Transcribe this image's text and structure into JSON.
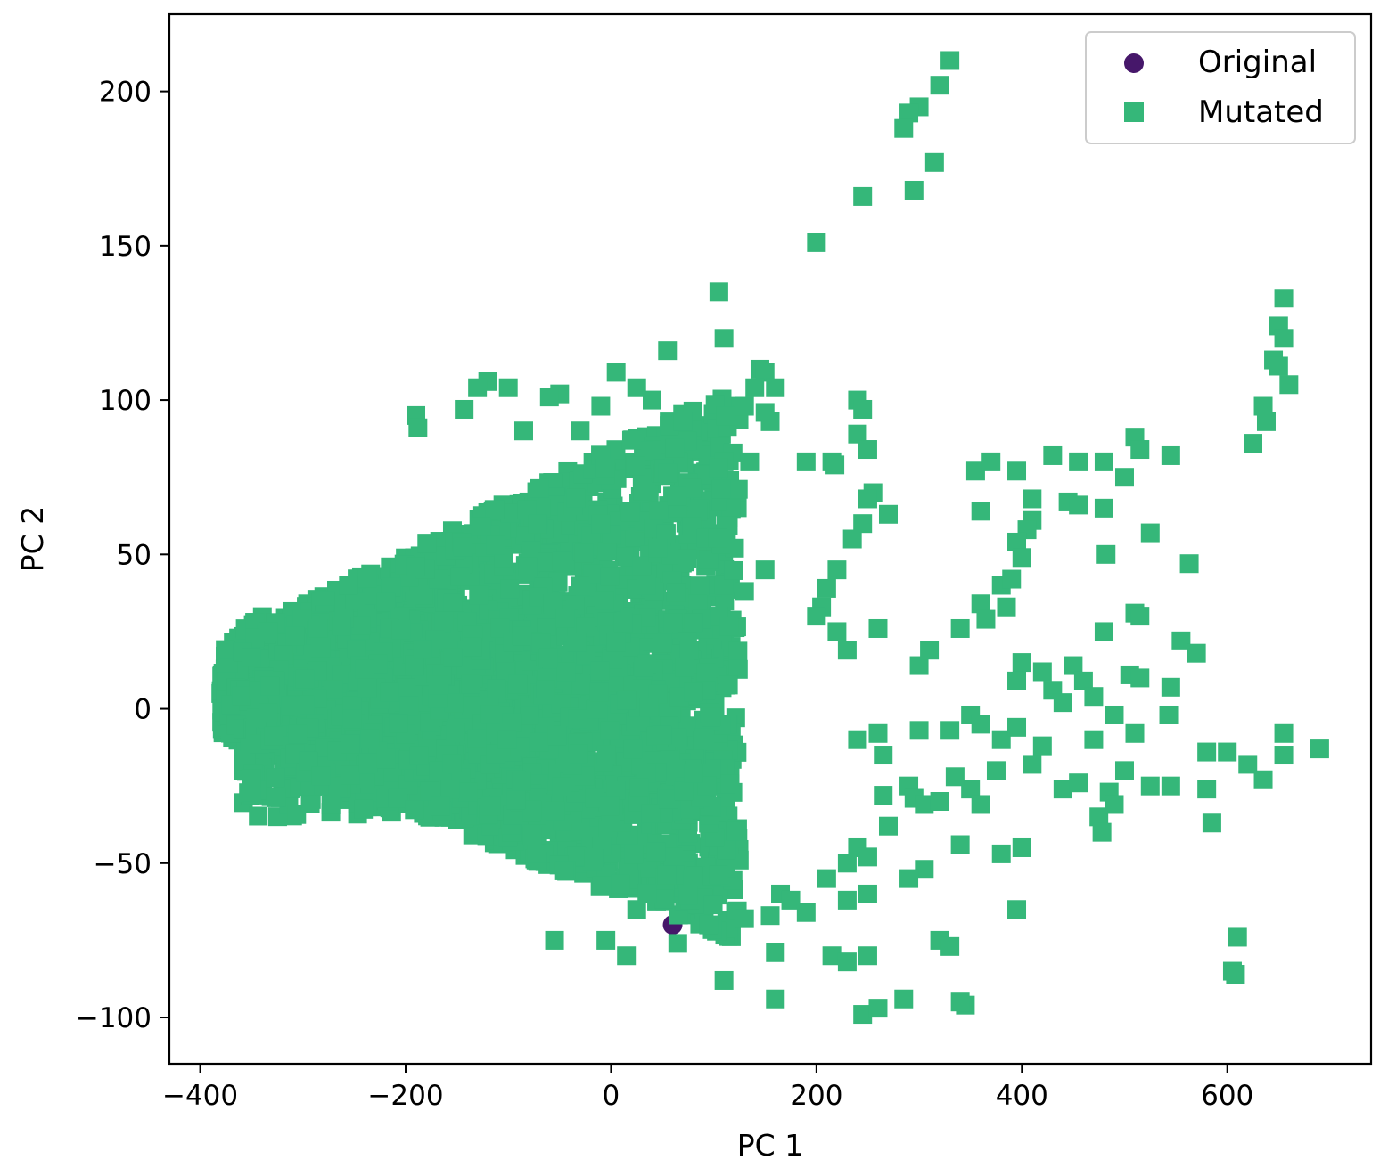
{
  "chart_data": {
    "type": "scatter",
    "title": "",
    "xlabel": "PC 1",
    "ylabel": "PC 2",
    "xlim": [
      -430,
      740
    ],
    "ylim": [
      -115,
      225
    ],
    "xticks": [
      -400,
      -200,
      0,
      200,
      400,
      600
    ],
    "yticks": [
      -100,
      -50,
      0,
      50,
      100,
      150,
      200
    ],
    "xtick_labels": [
      "−400",
      "−200",
      "0",
      "200",
      "400",
      "600"
    ],
    "ytick_labels": [
      "−100",
      "−50",
      "0",
      "50",
      "100",
      "150",
      "200"
    ],
    "grid": false,
    "legend": {
      "position": "top-right",
      "entries": [
        "Original",
        "Mutated"
      ]
    },
    "series": [
      {
        "name": "Original",
        "marker": "circle",
        "color": "#46176a",
        "points": [
          [
            -75,
            65
          ],
          [
            -30,
            48
          ],
          [
            60,
            -70
          ]
        ]
      },
      {
        "name": "Mutated",
        "marker": "square",
        "color": "#35b779",
        "cluster": {
          "count": 2600,
          "x_range": [
            -380,
            125
          ],
          "y_range": [
            -75,
            105
          ],
          "center": [
            -150,
            -2
          ]
        },
        "points": [
          [
            330,
            210
          ],
          [
            320,
            202
          ],
          [
            300,
            195
          ],
          [
            290,
            193
          ],
          [
            285,
            188
          ],
          [
            315,
            177
          ],
          [
            295,
            168
          ],
          [
            245,
            166
          ],
          [
            200,
            151
          ],
          [
            105,
            135
          ],
          [
            110,
            120
          ],
          [
            655,
            133
          ],
          [
            650,
            124
          ],
          [
            655,
            120
          ],
          [
            645,
            113
          ],
          [
            650,
            111
          ],
          [
            660,
            105
          ],
          [
            635,
            98
          ],
          [
            638,
            93
          ],
          [
            625,
            86
          ],
          [
            -50,
            102
          ],
          [
            -60,
            101
          ],
          [
            -120,
            106
          ],
          [
            -130,
            104
          ],
          [
            -100,
            104
          ],
          [
            5,
            109
          ],
          [
            55,
            116
          ],
          [
            145,
            110
          ],
          [
            150,
            109
          ],
          [
            140,
            104
          ],
          [
            160,
            104
          ],
          [
            -190,
            95
          ],
          [
            -188,
            91
          ],
          [
            -143,
            97
          ],
          [
            -85,
            90
          ],
          [
            40,
            100
          ],
          [
            70,
            93
          ],
          [
            25,
            104
          ],
          [
            240,
            100
          ],
          [
            245,
            97
          ],
          [
            -10,
            98
          ],
          [
            -30,
            90
          ],
          [
            20,
            87
          ],
          [
            130,
            98
          ],
          [
            150,
            96
          ],
          [
            155,
            93
          ],
          [
            240,
            89
          ],
          [
            250,
            84
          ],
          [
            215,
            80
          ],
          [
            218,
            79
          ],
          [
            190,
            80
          ],
          [
            110,
            80
          ],
          [
            105,
            78
          ],
          [
            135,
            80
          ],
          [
            355,
            77
          ],
          [
            370,
            80
          ],
          [
            395,
            77
          ],
          [
            430,
            82
          ],
          [
            455,
            80
          ],
          [
            480,
            80
          ],
          [
            500,
            75
          ],
          [
            510,
            88
          ],
          [
            515,
            84
          ],
          [
            545,
            82
          ],
          [
            410,
            68
          ],
          [
            445,
            67
          ],
          [
            455,
            66
          ],
          [
            480,
            65
          ],
          [
            360,
            64
          ],
          [
            410,
            61
          ],
          [
            405,
            58
          ],
          [
            525,
            57
          ],
          [
            395,
            54
          ],
          [
            400,
            49
          ],
          [
            482,
            50
          ],
          [
            563,
            47
          ],
          [
            255,
            70
          ],
          [
            250,
            68
          ],
          [
            270,
            63
          ],
          [
            245,
            60
          ],
          [
            235,
            55
          ],
          [
            220,
            45
          ],
          [
            210,
            39
          ],
          [
            205,
            33
          ],
          [
            200,
            30
          ],
          [
            150,
            45
          ],
          [
            130,
            38
          ],
          [
            220,
            25
          ],
          [
            230,
            19
          ],
          [
            260,
            26
          ],
          [
            300,
            14
          ],
          [
            310,
            19
          ],
          [
            340,
            26
          ],
          [
            360,
            34
          ],
          [
            380,
            40
          ],
          [
            390,
            42
          ],
          [
            365,
            29
          ],
          [
            385,
            33
          ],
          [
            400,
            15
          ],
          [
            395,
            9
          ],
          [
            420,
            12
          ],
          [
            430,
            6
          ],
          [
            440,
            2
          ],
          [
            450,
            14
          ],
          [
            460,
            9
          ],
          [
            470,
            4
          ],
          [
            480,
            25
          ],
          [
            510,
            31
          ],
          [
            515,
            30
          ],
          [
            490,
            -2
          ],
          [
            505,
            11
          ],
          [
            515,
            10
          ],
          [
            545,
            7
          ],
          [
            543,
            -2
          ],
          [
            555,
            22
          ],
          [
            570,
            18
          ],
          [
            510,
            -8
          ],
          [
            500,
            -20
          ],
          [
            525,
            -25
          ],
          [
            545,
            -25
          ],
          [
            580,
            -14
          ],
          [
            600,
            -14
          ],
          [
            620,
            -18
          ],
          [
            635,
            -23
          ],
          [
            655,
            -15
          ],
          [
            655,
            -8
          ],
          [
            690,
            -13
          ],
          [
            580,
            -26
          ],
          [
            585,
            -37
          ],
          [
            240,
            -10
          ],
          [
            260,
            -8
          ],
          [
            265,
            -15
          ],
          [
            300,
            -7
          ],
          [
            330,
            -7
          ],
          [
            350,
            -2
          ],
          [
            360,
            -5
          ],
          [
            375,
            -20
          ],
          [
            380,
            -10
          ],
          [
            395,
            -6
          ],
          [
            410,
            -18
          ],
          [
            420,
            -12
          ],
          [
            440,
            -26
          ],
          [
            455,
            -24
          ],
          [
            470,
            -10
          ],
          [
            475,
            -35
          ],
          [
            478,
            -40
          ],
          [
            485,
            -27
          ],
          [
            490,
            -31
          ],
          [
            350,
            -26
          ],
          [
            360,
            -31
          ],
          [
            290,
            -25
          ],
          [
            295,
            -29
          ],
          [
            305,
            -31
          ],
          [
            320,
            -30
          ],
          [
            335,
            -22
          ],
          [
            265,
            -28
          ],
          [
            270,
            -38
          ],
          [
            240,
            -45
          ],
          [
            250,
            -48
          ],
          [
            230,
            -50
          ],
          [
            305,
            -52
          ],
          [
            340,
            -44
          ],
          [
            380,
            -47
          ],
          [
            395,
            -65
          ],
          [
            400,
            -45
          ],
          [
            210,
            -55
          ],
          [
            230,
            -62
          ],
          [
            250,
            -60
          ],
          [
            290,
            -55
          ],
          [
            165,
            -60
          ],
          [
            175,
            -62
          ],
          [
            190,
            -66
          ],
          [
            155,
            -67
          ],
          [
            130,
            -68
          ],
          [
            160,
            -79
          ],
          [
            215,
            -80
          ],
          [
            250,
            -80
          ],
          [
            230,
            -82
          ],
          [
            320,
            -75
          ],
          [
            330,
            -77
          ],
          [
            110,
            -88
          ],
          [
            160,
            -94
          ],
          [
            245,
            -99
          ],
          [
            260,
            -97
          ],
          [
            285,
            -94
          ],
          [
            345,
            -96
          ],
          [
            340,
            -95
          ],
          [
            610,
            -74
          ],
          [
            605,
            -85
          ],
          [
            608,
            -86
          ],
          [
            15,
            -80
          ],
          [
            -5,
            -75
          ],
          [
            -55,
            -75
          ],
          [
            25,
            -65
          ],
          [
            65,
            -76
          ],
          [
            95,
            -70
          ]
        ]
      }
    ]
  }
}
